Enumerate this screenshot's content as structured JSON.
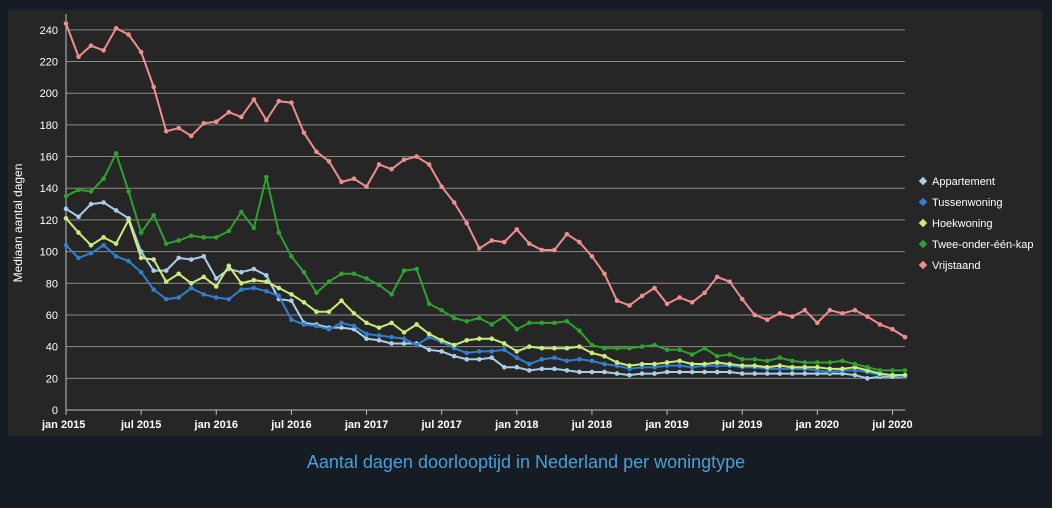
{
  "caption": "Aantal dagen doorlooptijd in Nederland per woningtype",
  "chart_data": {
    "type": "line",
    "title": "Aantal dagen doorlooptijd in Nederland per woningtype",
    "xlabel": "",
    "ylabel": "Mediaan aantal dagen",
    "ylim": [
      0,
      250
    ],
    "yticks": [
      0,
      20,
      40,
      60,
      80,
      100,
      120,
      140,
      160,
      180,
      200,
      220,
      240
    ],
    "x_start": "2015-01",
    "x_tick_labels": [
      "jan 2015",
      "jul 2015",
      "jan 2016",
      "jul 2016",
      "jan 2017",
      "jul 2017",
      "jan 2018",
      "jul 2018",
      "jan 2019",
      "jul 2019",
      "jan 2020",
      "jul 2020"
    ],
    "x_tick_months": [
      "2015-01",
      "2015-07",
      "2016-01",
      "2016-07",
      "2017-01",
      "2017-07",
      "2018-01",
      "2018-07",
      "2019-01",
      "2019-07",
      "2020-01",
      "2020-07"
    ],
    "x_months": [
      "2015-01",
      "2015-02",
      "2015-03",
      "2015-04",
      "2015-05",
      "2015-06",
      "2015-07",
      "2015-08",
      "2015-09",
      "2015-10",
      "2015-11",
      "2015-12",
      "2016-01",
      "2016-02",
      "2016-03",
      "2016-04",
      "2016-05",
      "2016-06",
      "2016-07",
      "2016-08",
      "2016-09",
      "2016-10",
      "2016-11",
      "2016-12",
      "2017-01",
      "2017-02",
      "2017-03",
      "2017-04",
      "2017-05",
      "2017-06",
      "2017-07",
      "2017-08",
      "2017-09",
      "2017-10",
      "2017-11",
      "2017-12",
      "2018-01",
      "2018-02",
      "2018-03",
      "2018-04",
      "2018-05",
      "2018-06",
      "2018-07",
      "2018-08",
      "2018-09",
      "2018-10",
      "2018-11",
      "2018-12",
      "2019-01",
      "2019-02",
      "2019-03",
      "2019-04",
      "2019-05",
      "2019-06",
      "2019-07",
      "2019-08",
      "2019-09",
      "2019-10",
      "2019-11",
      "2019-12",
      "2020-01",
      "2020-02",
      "2020-03",
      "2020-04",
      "2020-05",
      "2020-06",
      "2020-07",
      "2020-08"
    ],
    "grid": true,
    "legend_position": "right",
    "series": [
      {
        "name": "Appartement",
        "color": "#a9cfe8",
        "values": [
          127,
          122,
          130,
          131,
          126,
          121,
          100,
          88,
          88,
          96,
          95,
          97,
          83,
          89,
          87,
          89,
          85,
          70,
          69,
          55,
          54,
          52,
          52,
          51,
          45,
          44,
          42,
          42,
          42,
          38,
          37,
          34,
          32,
          32,
          33,
          27,
          27,
          25,
          26,
          26,
          25,
          24,
          24,
          24,
          23,
          22,
          23,
          23,
          24,
          24,
          24,
          24,
          24,
          24,
          23,
          23,
          23,
          23,
          23,
          23,
          23,
          23,
          23,
          22,
          20,
          21,
          21,
          21
        ]
      },
      {
        "name": "Tussenwoning",
        "color": "#2f7fd1",
        "values": [
          104,
          96,
          99,
          104,
          97,
          94,
          87,
          76,
          70,
          71,
          77,
          73,
          71,
          70,
          76,
          77,
          75,
          72,
          57,
          54,
          53,
          51,
          55,
          53,
          48,
          47,
          46,
          45,
          41,
          46,
          43,
          39,
          36,
          37,
          37,
          38,
          33,
          29,
          32,
          33,
          31,
          32,
          31,
          29,
          28,
          26,
          27,
          27,
          28,
          28,
          27,
          28,
          28,
          28,
          27,
          27,
          26,
          26,
          26,
          26,
          25,
          24,
          25,
          25,
          24,
          22,
          22,
          21
        ]
      },
      {
        "name": "Hoekwoning",
        "color": "#c9ee7a",
        "values": [
          121,
          112,
          104,
          109,
          105,
          120,
          96,
          95,
          81,
          86,
          80,
          84,
          78,
          91,
          80,
          82,
          81,
          77,
          73,
          68,
          62,
          62,
          69,
          61,
          55,
          52,
          55,
          49,
          54,
          48,
          44,
          41,
          44,
          45,
          45,
          42,
          37,
          40,
          39,
          39,
          39,
          40,
          36,
          34,
          30,
          28,
          29,
          29,
          30,
          31,
          29,
          29,
          30,
          29,
          28,
          28,
          27,
          28,
          27,
          27,
          27,
          26,
          26,
          27,
          25,
          23,
          22,
          22
        ]
      },
      {
        "name": "Twee-onder-één-kap",
        "color": "#2ea12e",
        "values": [
          135,
          139,
          138,
          146,
          162,
          138,
          112,
          123,
          105,
          107,
          110,
          109,
          109,
          113,
          125,
          115,
          147,
          112,
          97,
          87,
          74,
          81,
          86,
          86,
          83,
          79,
          73,
          88,
          89,
          67,
          63,
          58,
          56,
          58,
          54,
          59,
          51,
          55,
          55,
          55,
          56,
          50,
          41,
          39,
          39,
          39,
          40,
          41,
          38,
          38,
          35,
          39,
          34,
          35,
          32,
          32,
          31,
          33,
          31,
          30,
          30,
          30,
          31,
          29,
          27,
          25,
          25,
          25
        ]
      },
      {
        "name": "Vrijstaand",
        "color": "#f08d8d",
        "values": [
          244,
          223,
          230,
          227,
          241,
          237,
          226,
          204,
          176,
          178,
          173,
          181,
          182,
          188,
          185,
          196,
          183,
          195,
          194,
          175,
          163,
          157,
          144,
          146,
          141,
          155,
          152,
          158,
          160,
          155,
          141,
          131,
          118,
          102,
          107,
          106,
          114,
          105,
          101,
          101,
          111,
          106,
          97,
          86,
          69,
          66,
          72,
          77,
          67,
          71,
          68,
          74,
          84,
          81,
          70,
          60,
          57,
          61,
          59,
          63,
          55,
          63,
          61,
          63,
          59,
          54,
          51,
          46
        ]
      }
    ]
  }
}
